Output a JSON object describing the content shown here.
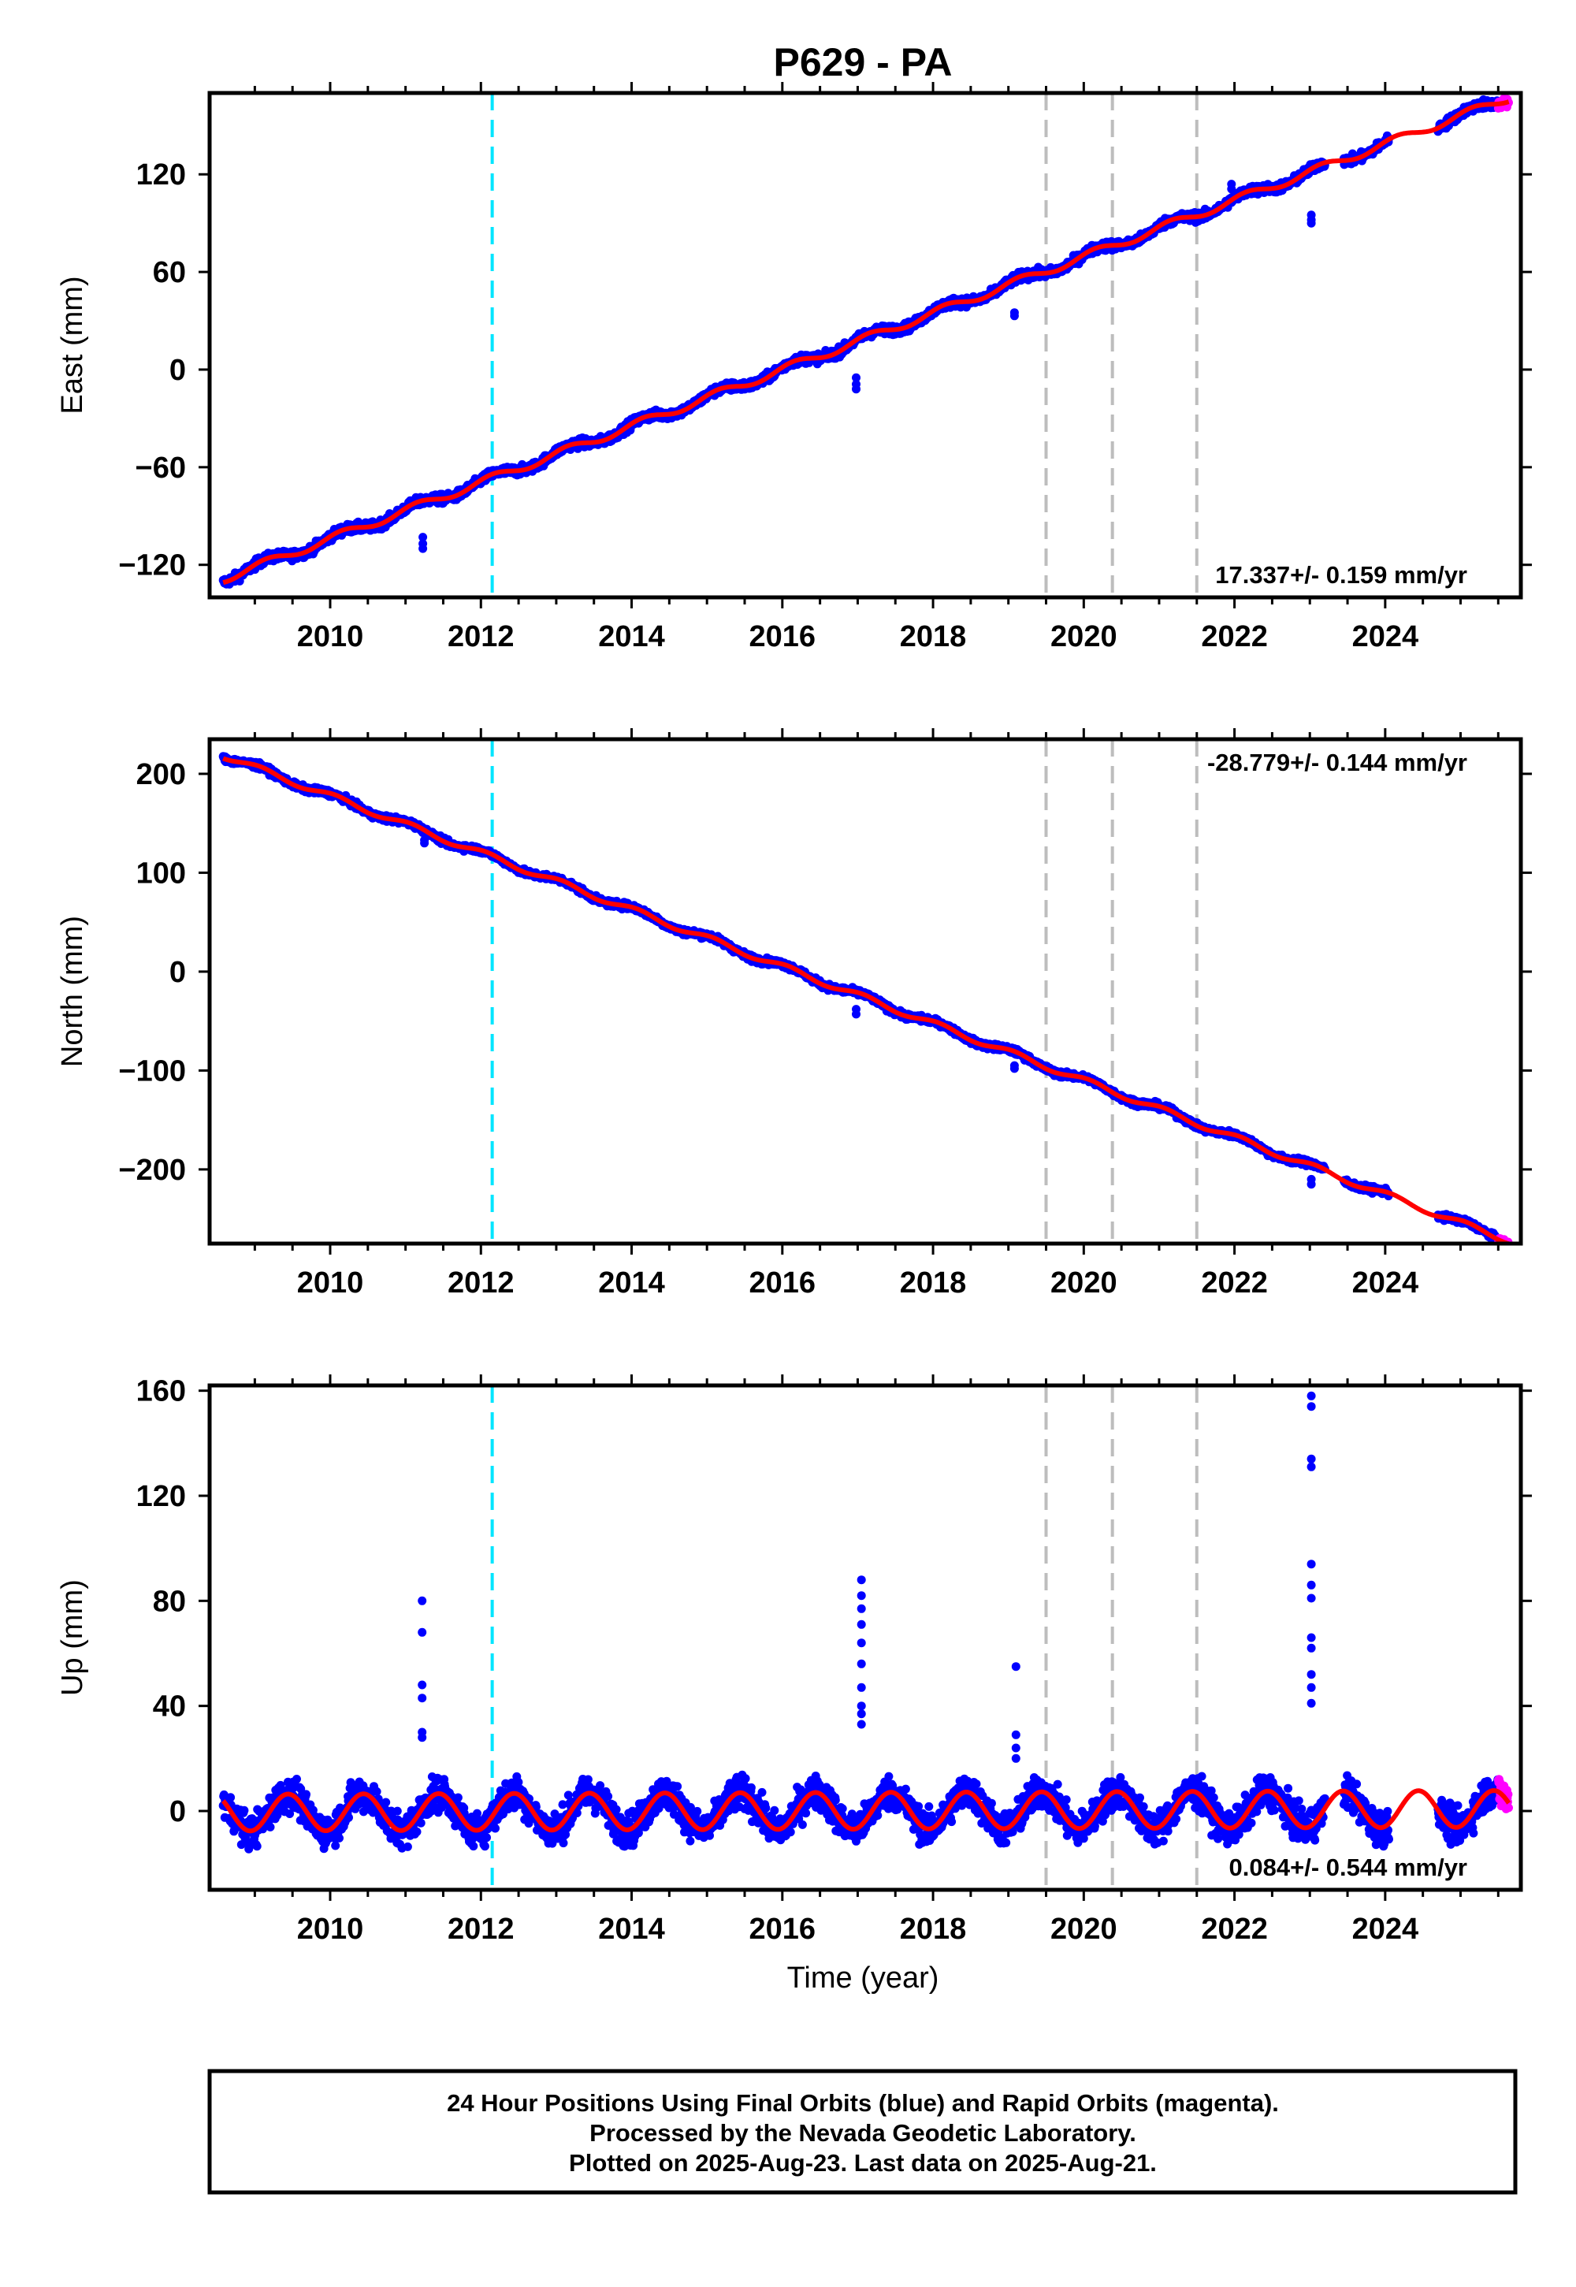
{
  "chart_data": {
    "type": "scatter",
    "title": "P629 - PA",
    "colors": {
      "final_orbits": "#0000ff",
      "rapid_orbits": "#ff00ff",
      "model": "#ff0000",
      "event_cyan": "#00e5ff",
      "event_gray": "#bdbdbd"
    },
    "xlim": [
      2008.4,
      2025.8
    ],
    "x_ticks": [
      2010,
      2012,
      2014,
      2016,
      2018,
      2020,
      2022,
      2024
    ],
    "x_tick_labels": [
      "2010",
      "2012",
      "2014",
      "2016",
      "2018",
      "2020",
      "2022",
      "2024"
    ],
    "xlabel": "Time (year)",
    "vertical_lines": [
      {
        "x": 2012.15,
        "style": "dashed",
        "color": "cyan"
      },
      {
        "x": 2019.5,
        "style": "dashed",
        "color": "gray"
      },
      {
        "x": 2020.38,
        "style": "dashed",
        "color": "gray"
      },
      {
        "x": 2021.5,
        "style": "dashed",
        "color": "gray"
      }
    ],
    "panels": [
      {
        "component": "east",
        "ylabel": "East (mm)",
        "ylim": [
          -140,
          170
        ],
        "y_ticks": [
          -120,
          -60,
          0,
          60,
          120
        ],
        "y_tick_labels": [
          "−120",
          "−60",
          "0",
          "60",
          "120"
        ],
        "rate_label": "17.337+/- 0.159 mm/yr",
        "rate_position": "bottom-right",
        "rate": 17.337,
        "offset_at_2016": 0,
        "seasonal_amplitude": 2.5,
        "seasonal_phase": 0.6,
        "noise": 2.0,
        "spikes": [
          {
            "t": 2011.23,
            "values": [
              -103,
              -107,
              -110
            ]
          },
          {
            "t": 2016.98,
            "values": [
              -5,
              -9,
              -12,
              20
            ]
          },
          {
            "t": 2019.08,
            "values": [
              35,
              33
            ]
          },
          {
            "t": 2023.02,
            "values": [
              95,
              92,
              90
            ]
          },
          {
            "t": 2021.96,
            "values": [
              114,
              111
            ]
          }
        ]
      },
      {
        "component": "north",
        "ylabel": "North (mm)",
        "ylim": [
          -275,
          235
        ],
        "y_ticks": [
          -200,
          -100,
          0,
          100,
          200
        ],
        "y_tick_labels": [
          "−200",
          "−100",
          "0",
          "100",
          "200"
        ],
        "rate_label": "-28.779+/- 0.144 mm/yr",
        "rate_position": "top-right",
        "rate": -28.779,
        "offset_at_2016": 5,
        "seasonal_amplitude": 3.0,
        "seasonal_phase": 1.1,
        "noise": 2.2,
        "spikes": [
          {
            "t": 2011.25,
            "values": [
              133,
              130
            ]
          },
          {
            "t": 2016.98,
            "values": [
              -38,
              -43
            ]
          },
          {
            "t": 2019.08,
            "values": [
              -95,
              -98
            ]
          },
          {
            "t": 2023.02,
            "values": [
              -210,
              -215
            ]
          }
        ]
      },
      {
        "component": "up",
        "ylabel": "Up (mm)",
        "ylim": [
          -30,
          162
        ],
        "y_ticks": [
          0,
          40,
          80,
          120,
          160
        ],
        "y_tick_labels": [
          "0",
          "40",
          "80",
          "120",
          "160"
        ],
        "rate_label": "0.084+/- 0.544 mm/yr",
        "rate_position": "bottom-right",
        "rate": 0.084,
        "offset_at_2016": 0,
        "seasonal_amplitude": 7.0,
        "seasonal_phase": -1.2,
        "noise": 4.5,
        "spikes": [
          {
            "t": 2011.22,
            "values": [
              80,
              68,
              48,
              43,
              30,
              28
            ]
          },
          {
            "t": 2017.05,
            "values": [
              88,
              82,
              77,
              71,
              64,
              56,
              47,
              40,
              37,
              33
            ]
          },
          {
            "t": 2019.1,
            "values": [
              55,
              29,
              24,
              20
            ]
          },
          {
            "t": 2023.02,
            "values": [
              158,
              154,
              134,
              131,
              94,
              86,
              81,
              66,
              62,
              52,
              47,
              41
            ]
          }
        ]
      }
    ],
    "data_gaps": [
      [
        2023.2,
        2023.45
      ],
      [
        2024.05,
        2024.7
      ]
    ],
    "rapid_orbits_from": 2025.5,
    "data_end": 2025.64
  },
  "footer": {
    "line1": "24 Hour Positions Using Final Orbits (blue) and Rapid Orbits (magenta).",
    "line2": "Processed by the Nevada Geodetic Laboratory.",
    "line3": "Plotted on 2025-Aug-23. Last data on 2025-Aug-21."
  }
}
